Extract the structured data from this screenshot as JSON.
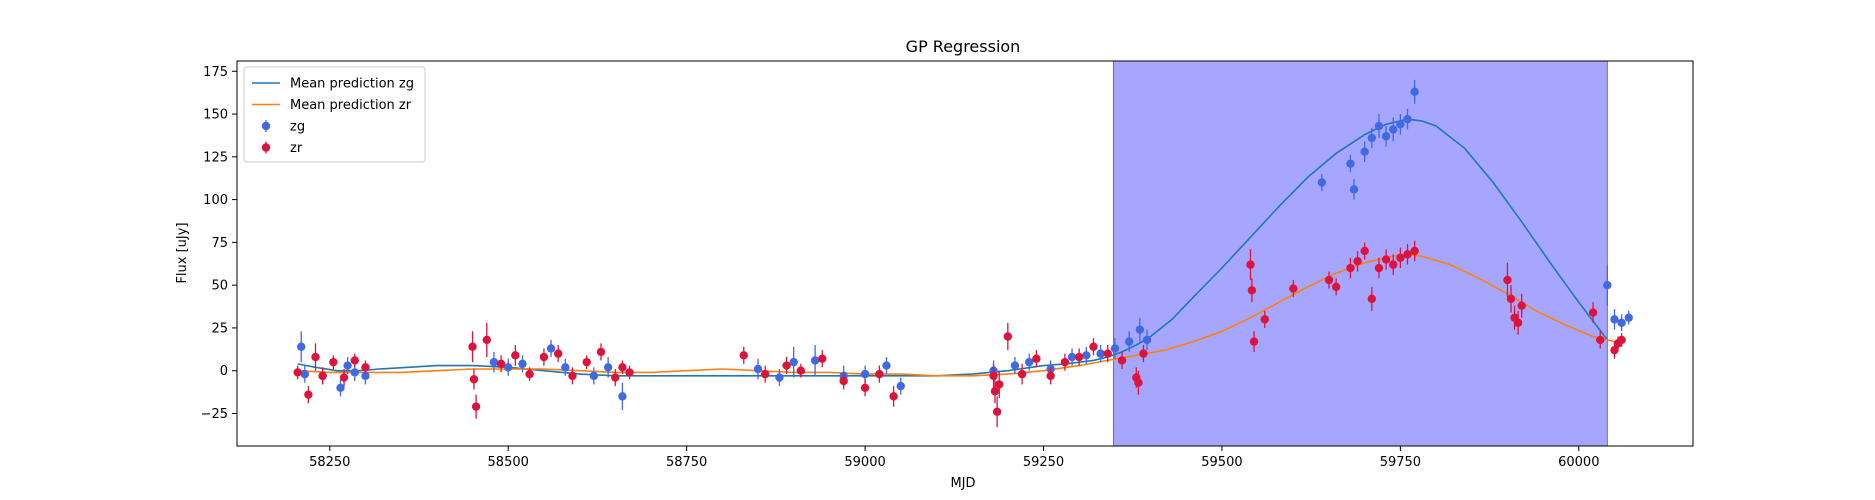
{
  "chart_data": {
    "type": "scatter",
    "title": "GP Regression",
    "xlabel": "MJD",
    "ylabel": "Flux [uJy]",
    "xlim": [
      58120,
      60160
    ],
    "ylim": [
      -44,
      181
    ],
    "xticks": [
      58250,
      58500,
      58750,
      59000,
      59250,
      59500,
      59750,
      60000
    ],
    "yticks": [
      -25,
      0,
      25,
      50,
      75,
      100,
      125,
      150,
      175
    ],
    "grid": false,
    "legend_position": "top-left",
    "shaded_region": {
      "x_start": 59348,
      "x_end": 60040,
      "color": "#a6a6ff"
    },
    "series": [
      {
        "name": "Mean prediction zg",
        "kind": "line",
        "color": "#1f77b4",
        "x": [
          58205,
          58230,
          58260,
          58290,
          58320,
          58360,
          58400,
          58450,
          58500,
          58550,
          58600,
          58650,
          58700,
          58750,
          58800,
          58850,
          58900,
          58950,
          59000,
          59050,
          59100,
          59150,
          59200,
          59250,
          59280,
          59300,
          59320,
          59340,
          59360,
          59380,
          59400,
          59430,
          59460,
          59500,
          59540,
          59580,
          59620,
          59660,
          59700,
          59730,
          59760,
          59780,
          59800,
          59840,
          59880,
          59920,
          59960,
          60000,
          60040
        ],
        "y": [
          4,
          2,
          0,
          0,
          1,
          2,
          3,
          3,
          2,
          0,
          -2,
          -3,
          -3,
          -3,
          -3,
          -3,
          -3,
          -3,
          -3,
          -3,
          -3,
          -2,
          0,
          3,
          4,
          5,
          6,
          8,
          11,
          15,
          20,
          30,
          43,
          60,
          78,
          96,
          113,
          127,
          138,
          144,
          147,
          146,
          143,
          130,
          110,
          87,
          63,
          40,
          18
        ]
      },
      {
        "name": "Mean prediction zr",
        "kind": "line",
        "color": "#ff7f0e",
        "x": [
          58205,
          58250,
          58300,
          58350,
          58400,
          58450,
          58500,
          58550,
          58600,
          58650,
          58700,
          58750,
          58800,
          58850,
          58900,
          58950,
          59000,
          59050,
          59100,
          59150,
          59200,
          59250,
          59300,
          59340,
          59380,
          59420,
          59460,
          59500,
          59540,
          59580,
          59620,
          59660,
          59700,
          59740,
          59760,
          59780,
          59820,
          59860,
          59900,
          59940,
          59980,
          60020,
          60050
        ],
        "y": [
          0,
          -1,
          -1,
          -1,
          0,
          1,
          1,
          1,
          0,
          -1,
          -1,
          0,
          1,
          0,
          -1,
          -1,
          -2,
          -2,
          -3,
          -3,
          -2,
          0,
          3,
          6,
          9,
          12,
          17,
          23,
          31,
          40,
          49,
          57,
          63,
          67,
          68,
          67,
          62,
          54,
          45,
          35,
          27,
          20,
          17
        ]
      },
      {
        "name": "zg",
        "kind": "scatter",
        "color": "#4169e1",
        "x": [
          58210,
          58215,
          58240,
          58265,
          58275,
          58285,
          58300,
          58480,
          58500,
          58520,
          58560,
          58580,
          58620,
          58640,
          58660,
          58850,
          58880,
          58900,
          58930,
          58970,
          59000,
          59030,
          59050,
          59180,
          59210,
          59230,
          59260,
          59290,
          59310,
          59330,
          59350,
          59370,
          59385,
          59395,
          59640,
          59680,
          59685,
          59700,
          59710,
          59720,
          59730,
          59740,
          59750,
          59760,
          59770,
          60040,
          60050,
          60060,
          60070
        ],
        "y": [
          14,
          -2,
          -3,
          -10,
          3,
          -1,
          -3,
          5,
          2,
          4,
          13,
          2,
          -3,
          2,
          -15,
          1,
          -4,
          5,
          6,
          -3,
          -2,
          3,
          -9,
          0,
          3,
          5,
          1,
          8,
          9,
          10,
          13,
          17,
          24,
          18,
          110,
          121,
          106,
          128,
          136,
          143,
          137,
          141,
          144,
          147,
          163,
          50,
          30,
          28,
          31
        ],
        "err": [
          9,
          5,
          5,
          5,
          5,
          5,
          5,
          6,
          5,
          5,
          5,
          5,
          5,
          6,
          8,
          6,
          5,
          9,
          9,
          6,
          5,
          5,
          5,
          6,
          5,
          5,
          5,
          5,
          5,
          5,
          6,
          6,
          7,
          6,
          5,
          5,
          6,
          6,
          6,
          7,
          6,
          7,
          6,
          6,
          7,
          12,
          6,
          5,
          4
        ]
      },
      {
        "name": "zr",
        "kind": "scatter",
        "color": "#dc143c",
        "x": [
          58205,
          58220,
          58230,
          58240,
          58255,
          58270,
          58285,
          58300,
          58450,
          58452,
          58455,
          58470,
          58490,
          58510,
          58530,
          58550,
          58570,
          58590,
          58610,
          58630,
          58650,
          58660,
          58670,
          58830,
          58860,
          58890,
          58910,
          58940,
          58970,
          59000,
          59020,
          59040,
          59180,
          59182,
          59185,
          59188,
          59200,
          59220,
          59240,
          59260,
          59280,
          59300,
          59320,
          59340,
          59360,
          59380,
          59383,
          59390,
          59540,
          59542,
          59545,
          59560,
          59600,
          59650,
          59660,
          59680,
          59690,
          59700,
          59710,
          59720,
          59730,
          59740,
          59750,
          59760,
          59770,
          59900,
          59905,
          59910,
          59915,
          59920,
          60020,
          60030,
          60050,
          60055,
          60060
        ],
        "y": [
          -1,
          -14,
          8,
          -3,
          5,
          -4,
          6,
          2,
          14,
          -5,
          -21,
          18,
          4,
          9,
          -2,
          8,
          10,
          -3,
          5,
          11,
          -4,
          2,
          -1,
          9,
          -2,
          3,
          0,
          7,
          -6,
          -10,
          -2,
          -15,
          -3,
          -12,
          -24,
          -8,
          20,
          -2,
          7,
          -3,
          5,
          8,
          14,
          10,
          6,
          -4,
          -7,
          10,
          62,
          47,
          17,
          30,
          48,
          53,
          49,
          60,
          64,
          70,
          42,
          60,
          65,
          62,
          66,
          68,
          70,
          53,
          42,
          31,
          28,
          38,
          34,
          18,
          12,
          16,
          18
        ],
        "err": [
          4,
          5,
          8,
          5,
          4,
          5,
          4,
          4,
          9,
          6,
          7,
          10,
          5,
          6,
          4,
          5,
          5,
          5,
          4,
          5,
          5,
          4,
          4,
          5,
          5,
          5,
          4,
          5,
          5,
          5,
          5,
          6,
          7,
          7,
          9,
          8,
          8,
          6,
          5,
          5,
          5,
          5,
          5,
          5,
          5,
          6,
          7,
          5,
          9,
          7,
          6,
          5,
          5,
          5,
          5,
          6,
          6,
          5,
          7,
          6,
          6,
          6,
          6,
          6,
          6,
          10,
          8,
          7,
          7,
          7,
          6,
          5,
          5,
          4,
          4
        ]
      }
    ],
    "legend": [
      {
        "label": "Mean prediction zg",
        "marker": "line",
        "color": "#1f77b4"
      },
      {
        "label": "Mean prediction zr",
        "marker": "line",
        "color": "#ff7f0e"
      },
      {
        "label": "zg",
        "marker": "point",
        "color": "#4169e1"
      },
      {
        "label": "zr",
        "marker": "point",
        "color": "#dc143c"
      }
    ]
  }
}
